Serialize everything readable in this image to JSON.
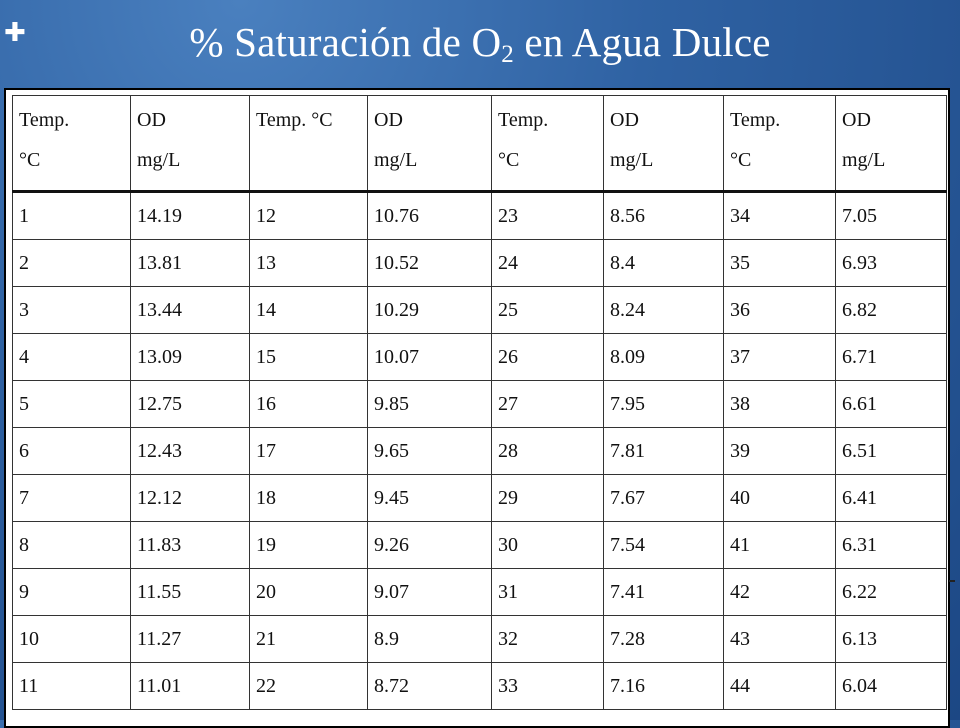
{
  "slide": {
    "title_main": "% Saturación de O",
    "title_sub": "2",
    "title_rest": " en Agua Dulce"
  },
  "table": {
    "headers": [
      [
        "Temp.",
        "°C"
      ],
      [
        "OD",
        "mg/L"
      ],
      [
        "Temp. °C",
        ""
      ],
      [
        "OD",
        "mg/L"
      ],
      [
        "Temp.",
        "°C"
      ],
      [
        "OD",
        "mg/L"
      ],
      [
        "Temp.",
        "°C"
      ],
      [
        "OD",
        "mg/L"
      ]
    ],
    "rows": [
      [
        "1",
        "14.19",
        "12",
        "10.76",
        "23",
        "8.56",
        "34",
        "7.05"
      ],
      [
        "2",
        "13.81",
        "13",
        "10.52",
        "24",
        "8.4",
        "35",
        "6.93"
      ],
      [
        "3",
        "13.44",
        "14",
        "10.29",
        "25",
        "8.24",
        "36",
        "6.82"
      ],
      [
        "4",
        "13.09",
        "15",
        "10.07",
        "26",
        "8.09",
        "37",
        "6.71"
      ],
      [
        "5",
        "12.75",
        "16",
        "9.85",
        "27",
        "7.95",
        "38",
        "6.61"
      ],
      [
        "6",
        "12.43",
        "17",
        "9.65",
        "28",
        "7.81",
        "39",
        "6.51"
      ],
      [
        "7",
        "12.12",
        "18",
        "9.45",
        "29",
        "7.67",
        "40",
        "6.41"
      ],
      [
        "8",
        "11.83",
        "19",
        "9.26",
        "30",
        "7.54",
        "41",
        "6.31"
      ],
      [
        "9",
        "11.55",
        "20",
        "9.07",
        "31",
        "7.41",
        "42",
        "6.22"
      ],
      [
        "10",
        "11.27",
        "21",
        "8.9",
        "32",
        "7.28",
        "43",
        "6.13"
      ],
      [
        "11",
        "11.01",
        "22",
        "8.72",
        "33",
        "7.16",
        "44",
        "6.04"
      ]
    ]
  }
}
